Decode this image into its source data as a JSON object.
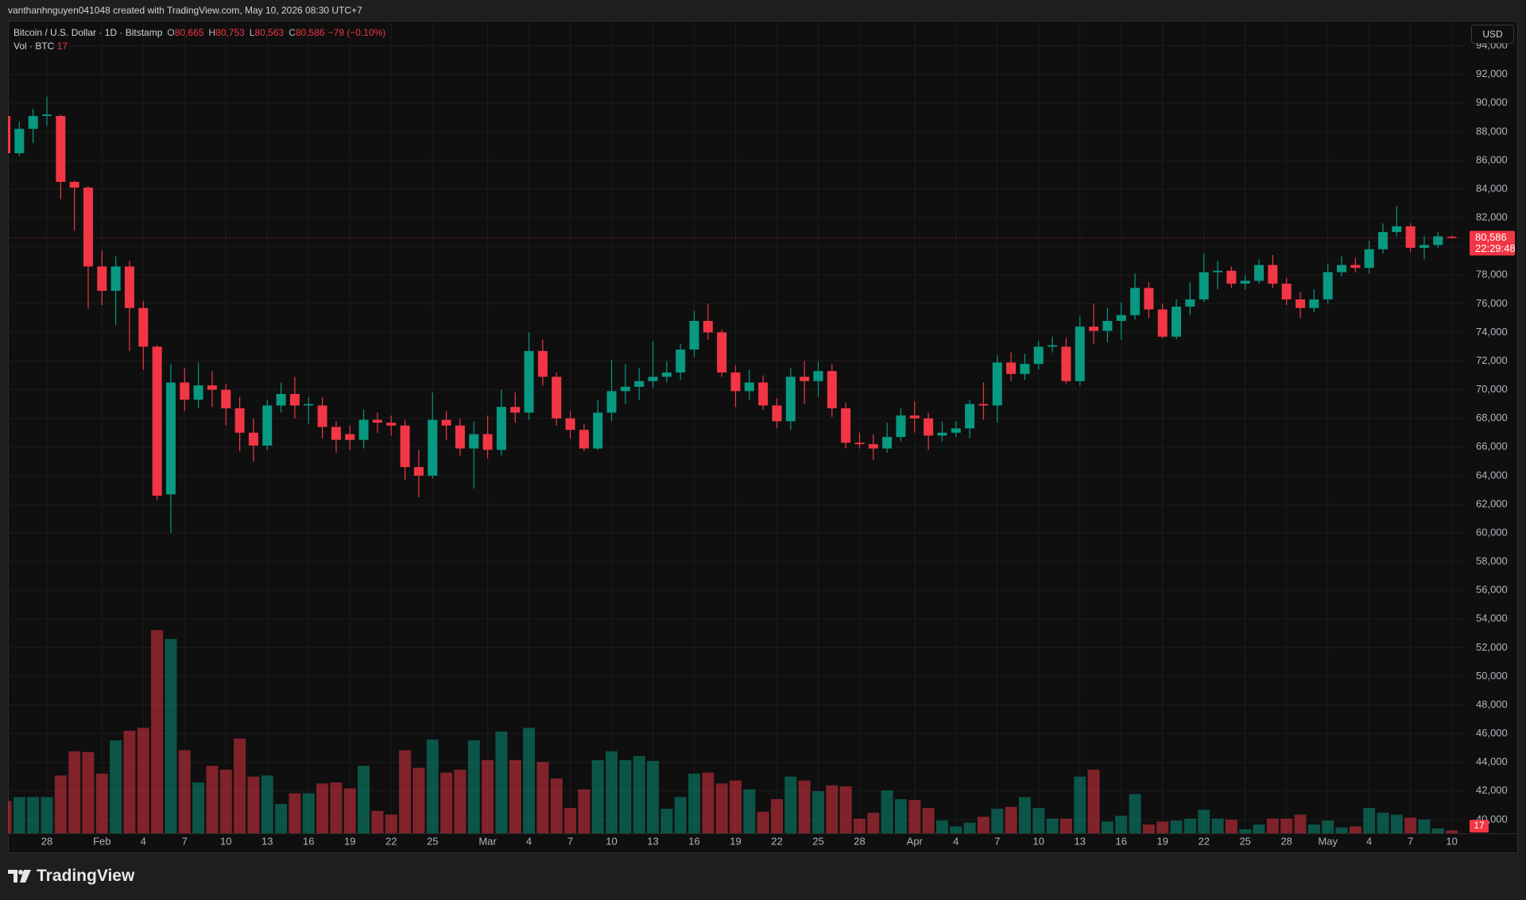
{
  "header": {
    "caption": "vanthanhnguyen041048 created with TradingView.com, May 10, 2026 08:30 UTC+7"
  },
  "currency": "USD",
  "brand": "TradingView",
  "chart_data": {
    "type": "candlestick",
    "title": "Bitcoin / U.S. Dollar · 1D · Bitstamp",
    "legend_items": [
      {
        "key": "O",
        "value": "80,665"
      },
      {
        "key": "H",
        "value": "80,753"
      },
      {
        "key": "L",
        "value": "80,563"
      },
      {
        "key": "C",
        "value": "80,586"
      }
    ],
    "change": "−79 (−0.10%)",
    "last_price_label": "80,586",
    "countdown": "22:29:48",
    "up_color": "#089981",
    "down_color": "#f23645",
    "grid": true,
    "categories": [
      null,
      null,
      null,
      "28",
      null,
      null,
      null,
      "Feb",
      null,
      null,
      "4",
      null,
      null,
      "7",
      null,
      null,
      "10",
      null,
      null,
      "13",
      null,
      null,
      "16",
      null,
      null,
      "19",
      null,
      null,
      "22",
      null,
      null,
      "25",
      null,
      null,
      null,
      "Mar",
      null,
      null,
      "4",
      null,
      null,
      "7",
      null,
      null,
      "10",
      null,
      null,
      "13",
      null,
      null,
      "16",
      null,
      null,
      "19",
      null,
      null,
      "22",
      null,
      null,
      "25",
      null,
      null,
      "28",
      null,
      null,
      null,
      "Apr",
      null,
      null,
      "4",
      null,
      null,
      "7",
      null,
      null,
      "10",
      null,
      null,
      "13",
      null,
      null,
      "16",
      null,
      null,
      "19",
      null,
      null,
      "22",
      null,
      null,
      "25",
      null,
      null,
      "28",
      null,
      null,
      "May",
      null,
      null,
      "4",
      null,
      null,
      "7",
      null,
      null,
      "10"
    ],
    "open": [
      89100,
      86500,
      88200,
      89100,
      89100,
      84500,
      84100,
      78600,
      76900,
      78600,
      75700,
      73000,
      62700,
      70500,
      69300,
      70300,
      70000,
      68700,
      67000,
      66100,
      68900,
      69700,
      68900,
      68900,
      67400,
      66900,
      66500,
      67900,
      67700,
      67500,
      64600,
      64000,
      67900,
      67500,
      65900,
      66900,
      65800,
      68800,
      68400,
      72700,
      70900,
      68000,
      67200,
      65900,
      68400,
      69900,
      70200,
      70600,
      70900,
      71200,
      72800,
      74800,
      74000,
      71200,
      69900,
      70500,
      68900,
      67800,
      70900,
      70600,
      71300,
      68700,
      66300,
      66200,
      65900,
      66700,
      68200,
      68000,
      66800,
      67000,
      67300,
      69000,
      68900,
      71900,
      71100,
      71800,
      73000,
      73000,
      70600,
      74400,
      74100,
      74800,
      75200,
      77100,
      75600,
      73700,
      75800,
      76300,
      78200,
      78300,
      77400,
      77600,
      78700,
      77400,
      76300,
      75700,
      76300,
      78200,
      78700,
      78500,
      79800,
      81000,
      81400,
      79900,
      80100,
      80665
    ],
    "high": [
      89300,
      88700,
      89600,
      90450,
      89200,
      84600,
      84200,
      79700,
      79300,
      79000,
      76200,
      73100,
      71800,
      71500,
      71900,
      71300,
      70400,
      69500,
      68000,
      69300,
      70500,
      70900,
      69500,
      69500,
      67800,
      67500,
      68600,
      68400,
      68200,
      67900,
      65800,
      69800,
      68500,
      68000,
      67800,
      68200,
      70000,
      69800,
      74000,
      73500,
      71200,
      68500,
      67600,
      69300,
      72100,
      71800,
      71500,
      73400,
      72000,
      73200,
      75500,
      76000,
      74200,
      71700,
      71400,
      71000,
      69400,
      71500,
      72000,
      72000,
      71800,
      69100,
      67000,
      66900,
      67700,
      68700,
      69200,
      68400,
      67800,
      67800,
      69300,
      70500,
      72400,
      72600,
      72500,
      73400,
      73700,
      73600,
      75100,
      76000,
      75700,
      76100,
      78100,
      77500,
      76000,
      76300,
      77500,
      79500,
      79000,
      78600,
      78000,
      79100,
      79400,
      77800,
      76800,
      77000,
      78800,
      79300,
      79200,
      80400,
      81600,
      82800,
      81600,
      80700,
      81000,
      80753
    ],
    "low": [
      86300,
      86300,
      87200,
      88400,
      83300,
      81100,
      75650,
      75900,
      74500,
      72700,
      71400,
      62300,
      60000,
      68500,
      68700,
      68800,
      67500,
      65700,
      65000,
      65800,
      68400,
      68000,
      67600,
      66600,
      65600,
      65800,
      65900,
      67000,
      66800,
      63700,
      62500,
      63800,
      66500,
      65400,
      63100,
      65200,
      65400,
      67700,
      67900,
      70300,
      67500,
      66600,
      65700,
      65800,
      67800,
      69000,
      69300,
      70100,
      70500,
      70700,
      72300,
      73500,
      70900,
      68800,
      69300,
      68600,
      67300,
      67200,
      69000,
      69500,
      68100,
      65900,
      65900,
      65100,
      65600,
      66400,
      67000,
      65800,
      66400,
      66700,
      66600,
      67900,
      67700,
      70600,
      70700,
      71400,
      72600,
      70400,
      70300,
      73200,
      73300,
      73500,
      74900,
      75000,
      73600,
      73500,
      75200,
      76100,
      77000,
      77100,
      77000,
      77400,
      77100,
      75900,
      75000,
      75400,
      76000,
      77900,
      78200,
      78100,
      79500,
      80700,
      79600,
      79100,
      79900,
      80563
    ],
    "close": [
      86500,
      88200,
      89100,
      89200,
      84500,
      84100,
      78600,
      76900,
      78600,
      75700,
      73000,
      62600,
      70500,
      69300,
      70300,
      70000,
      68700,
      67000,
      66100,
      68900,
      69700,
      68900,
      69000,
      67400,
      66500,
      66500,
      67900,
      67700,
      67500,
      64600,
      64000,
      67900,
      67500,
      65900,
      66900,
      65800,
      68800,
      68400,
      72700,
      70900,
      68000,
      67200,
      65900,
      68400,
      69900,
      70200,
      70600,
      70900,
      71200,
      72800,
      74800,
      74000,
      71200,
      69900,
      70500,
      68900,
      67800,
      70900,
      70600,
      71300,
      68700,
      66300,
      66200,
      65900,
      66700,
      68200,
      68000,
      66800,
      67000,
      67300,
      69000,
      68900,
      71900,
      71100,
      71800,
      73000,
      73100,
      70600,
      74400,
      74100,
      74800,
      75200,
      77100,
      75600,
      73700,
      75800,
      76300,
      78200,
      78300,
      77400,
      77600,
      78700,
      77400,
      76300,
      75700,
      76300,
      78200,
      78700,
      78500,
      79800,
      81000,
      81400,
      79900,
      80100,
      80700,
      80586
    ],
    "volume": {
      "title": "Vol · BTC",
      "values": [
        187,
        210,
        210,
        210,
        335,
        476,
        471,
        346,
        539,
        595,
        612,
        1179,
        1128,
        482,
        295,
        391,
        369,
        550,
        329,
        335,
        170,
        232,
        232,
        289,
        295,
        261,
        391,
        130,
        108,
        482,
        380,
        544,
        352,
        369,
        539,
        425,
        590,
        425,
        612,
        414,
        318,
        147,
        255,
        425,
        476,
        425,
        448,
        420,
        142,
        210,
        346,
        352,
        289,
        306,
        255,
        125,
        198,
        329,
        306,
        244,
        278,
        272,
        85,
        119,
        249,
        198,
        193,
        147,
        74,
        40,
        62,
        96,
        142,
        153,
        210,
        147,
        85,
        85,
        329,
        369,
        68,
        102,
        227,
        51,
        68,
        74,
        85,
        136,
        85,
        79,
        23,
        51,
        85,
        85,
        108,
        51,
        74,
        34,
        40,
        147,
        119,
        108,
        91,
        79,
        28,
        17
      ]
    },
    "ylim": [
      39050,
      95750
    ],
    "yticks": [
      {
        "value": 40000,
        "label": "40,000"
      },
      {
        "value": 42000,
        "label": "42,000"
      },
      {
        "value": 44000,
        "label": "44,000"
      },
      {
        "value": 46000,
        "label": "46,000"
      },
      {
        "value": 48000,
        "label": "48,000"
      },
      {
        "value": 50000,
        "label": "50,000"
      },
      {
        "value": 52000,
        "label": "52,000"
      },
      {
        "value": 54000,
        "label": "54,000"
      },
      {
        "value": 56000,
        "label": "56,000"
      },
      {
        "value": 58000,
        "label": "58,000"
      },
      {
        "value": 60000,
        "label": "60,000"
      },
      {
        "value": 62000,
        "label": "62,000"
      },
      {
        "value": 64000,
        "label": "64,000"
      },
      {
        "value": 66000,
        "label": "66,000"
      },
      {
        "value": 68000,
        "label": "68,000"
      },
      {
        "value": 70000,
        "label": "70,000"
      },
      {
        "value": 72000,
        "label": "72,000"
      },
      {
        "value": 74000,
        "label": "74,000"
      },
      {
        "value": 76000,
        "label": "76,000"
      },
      {
        "value": 78000,
        "label": "78,000"
      },
      {
        "value": 80000,
        "label": "80,000"
      },
      {
        "value": 82000,
        "label": "82,000"
      },
      {
        "value": 84000,
        "label": "84,000"
      },
      {
        "value": 86000,
        "label": "86,000"
      },
      {
        "value": 88000,
        "label": "88,000"
      },
      {
        "value": 90000,
        "label": "90,000"
      },
      {
        "value": 92000,
        "label": "92,000"
      },
      {
        "value": 94000,
        "label": "94,000"
      }
    ]
  }
}
